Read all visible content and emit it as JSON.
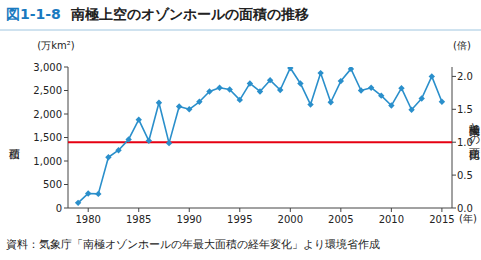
{
  "chart_data": {
    "type": "line",
    "figure_number": "図1-1-8",
    "title": "南極上空のオゾンホールの面積の推移",
    "y_label": "面積",
    "y_unit": "(万km²)",
    "y2_label": "南極大陸との面積比",
    "y2_unit": "(倍)",
    "x_unit": "(年)",
    "source": "資料：気象庁「南極オゾンホールの年最大面積の経年変化」より環境省作成",
    "x": [
      1979,
      1980,
      1981,
      1982,
      1983,
      1984,
      1985,
      1986,
      1987,
      1988,
      1989,
      1990,
      1991,
      1992,
      1993,
      1994,
      1995,
      1996,
      1997,
      1998,
      1999,
      2000,
      2001,
      2002,
      2003,
      2004,
      2005,
      2006,
      2007,
      2008,
      2009,
      2010,
      2011,
      2012,
      2013,
      2014,
      2015
    ],
    "series": [
      {
        "name": "オゾンホールの面積",
        "color": "#2a8fcb",
        "marker": "diamond",
        "values": [
          110,
          310,
          300,
          1080,
          1230,
          1460,
          1880,
          1430,
          2240,
          1380,
          2160,
          2100,
          2260,
          2480,
          2560,
          2520,
          2300,
          2650,
          2480,
          2720,
          2510,
          2980,
          2650,
          2200,
          2870,
          2250,
          2700,
          2960,
          2500,
          2560,
          2390,
          2180,
          2550,
          2090,
          2330,
          2800,
          2260
        ]
      }
    ],
    "reference_line": {
      "value": 1400,
      "color": "#e60012"
    },
    "xlim": [
      1978,
      2016
    ],
    "xticks": [
      1980,
      1985,
      1990,
      1995,
      2000,
      2005,
      2010,
      2015
    ],
    "ylim": [
      0,
      3000
    ],
    "yticks": [
      0,
      500,
      {
        "value": 1000,
        "label": "1,000"
      },
      {
        "value": 1500,
        "label": "1,500"
      },
      {
        "value": 2000,
        "label": "2,000"
      },
      {
        "value": 2500,
        "label": "2,500"
      },
      {
        "value": 3000,
        "label": "3,000"
      }
    ],
    "y2lim": [
      0,
      2.143
    ],
    "y2ticks": [
      {
        "value": 0,
        "label": "0.0"
      },
      {
        "value": 0.5,
        "label": "0.5"
      },
      {
        "value": 1,
        "label": "1.0"
      },
      {
        "value": 1.5,
        "label": "1.5"
      },
      {
        "value": 2,
        "label": "2.0"
      }
    ],
    "grid": false
  }
}
